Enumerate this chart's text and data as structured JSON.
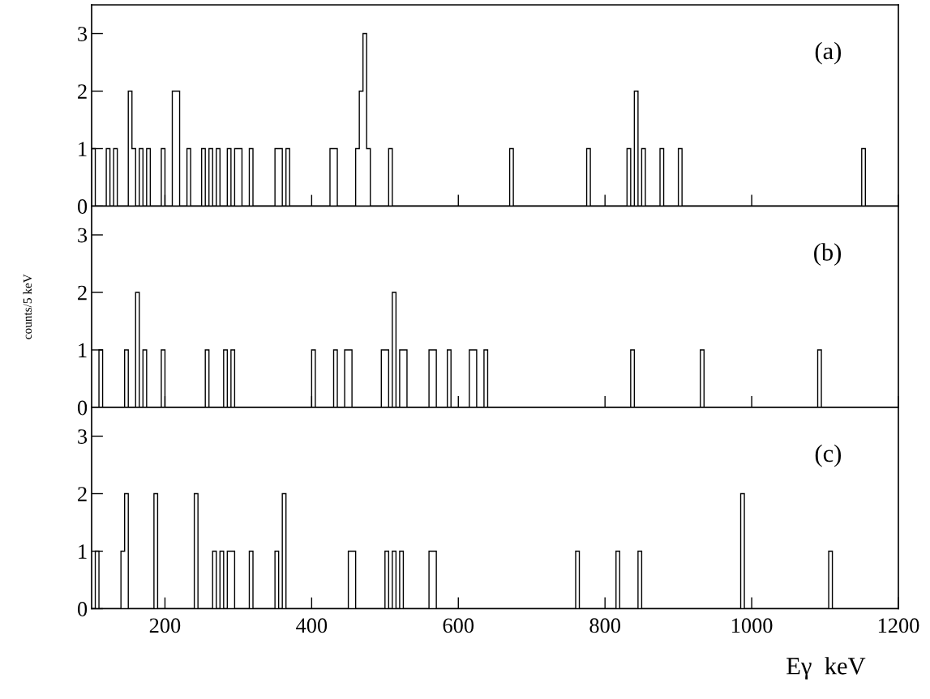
{
  "chart_data": [
    {
      "type": "histogram",
      "annotations": [
        "(a)"
      ],
      "color": "#000000",
      "xlim": [
        100,
        1200
      ],
      "ylim": [
        0,
        3.5
      ],
      "xticks": [
        200,
        400,
        600,
        800,
        1000,
        1200
      ],
      "yticks": [
        0,
        1,
        2,
        3
      ],
      "tick_labels": "y",
      "bins": [
        100,
        105,
        120,
        125,
        130,
        135,
        150,
        155,
        160,
        165,
        170,
        175,
        180,
        195,
        200,
        210,
        215,
        220,
        230,
        235,
        250,
        255,
        260,
        265,
        270,
        275,
        285,
        290,
        295,
        300,
        305,
        315,
        320,
        350,
        355,
        360,
        365,
        370,
        425,
        430,
        435,
        460,
        465,
        470,
        475,
        480,
        505,
        510,
        670,
        675,
        775,
        780,
        830,
        835,
        840,
        845,
        850,
        855,
        875,
        880,
        900,
        905,
        1150,
        1155,
        1200
      ],
      "values": [
        1,
        0,
        1,
        0,
        1,
        0,
        2,
        1,
        0,
        1,
        0,
        1,
        0,
        1,
        0,
        2,
        2,
        0,
        1,
        0,
        1,
        0,
        1,
        0,
        1,
        0,
        1,
        0,
        1,
        1,
        0,
        1,
        0,
        1,
        1,
        0,
        1,
        0,
        1,
        1,
        0,
        1,
        2,
        3,
        1,
        0,
        1,
        0,
        1,
        0,
        1,
        0,
        1,
        0,
        2,
        0,
        1,
        0,
        1,
        0,
        1,
        0,
        1,
        0
      ]
    },
    {
      "type": "histogram",
      "annotations": [
        "(b)"
      ],
      "ylabel": "counts/5 keV",
      "color": "#000000",
      "xlim": [
        100,
        1200
      ],
      "ylim": [
        0,
        3.5
      ],
      "xticks": [
        200,
        400,
        600,
        800,
        1000,
        1200
      ],
      "yticks": [
        0,
        1,
        2,
        3
      ],
      "tick_labels": "y",
      "bins": [
        100,
        110,
        115,
        145,
        150,
        160,
        165,
        170,
        175,
        195,
        200,
        255,
        260,
        280,
        285,
        290,
        295,
        400,
        405,
        430,
        435,
        445,
        450,
        455,
        495,
        500,
        505,
        510,
        515,
        520,
        525,
        530,
        560,
        565,
        570,
        585,
        590,
        615,
        620,
        625,
        635,
        640,
        835,
        840,
        930,
        935,
        1090,
        1095,
        1200
      ],
      "values": [
        0,
        1,
        0,
        1,
        0,
        2,
        0,
        1,
        0,
        1,
        0,
        1,
        0,
        1,
        0,
        1,
        0,
        1,
        0,
        1,
        0,
        1,
        1,
        0,
        1,
        1,
        0,
        2,
        0,
        1,
        1,
        0,
        1,
        1,
        0,
        1,
        0,
        1,
        1,
        0,
        1,
        0,
        1,
        0,
        1,
        0,
        1,
        0
      ]
    },
    {
      "type": "histogram",
      "annotations": [
        "(c)"
      ],
      "xlabel": "Eγ  keV",
      "color": "#000000",
      "xlim": [
        100,
        1200
      ],
      "ylim": [
        0,
        3.5
      ],
      "xticks": [
        200,
        400,
        600,
        800,
        1000,
        1200
      ],
      "yticks": [
        0,
        1,
        2,
        3
      ],
      "bins": [
        100,
        105,
        110,
        140,
        145,
        150,
        185,
        190,
        240,
        245,
        265,
        270,
        275,
        280,
        285,
        290,
        295,
        315,
        320,
        350,
        355,
        360,
        365,
        450,
        455,
        460,
        500,
        505,
        510,
        515,
        520,
        525,
        560,
        565,
        570,
        760,
        765,
        815,
        820,
        845,
        850,
        985,
        990,
        1105,
        1110,
        1200
      ],
      "values": [
        0,
        1,
        0,
        1,
        2,
        0,
        2,
        0,
        2,
        0,
        1,
        0,
        1,
        0,
        1,
        1,
        0,
        1,
        0,
        1,
        0,
        2,
        0,
        1,
        1,
        0,
        1,
        0,
        1,
        0,
        1,
        0,
        1,
        1,
        0,
        1,
        0,
        1,
        0,
        1,
        0,
        2,
        0,
        1,
        0
      ]
    }
  ]
}
